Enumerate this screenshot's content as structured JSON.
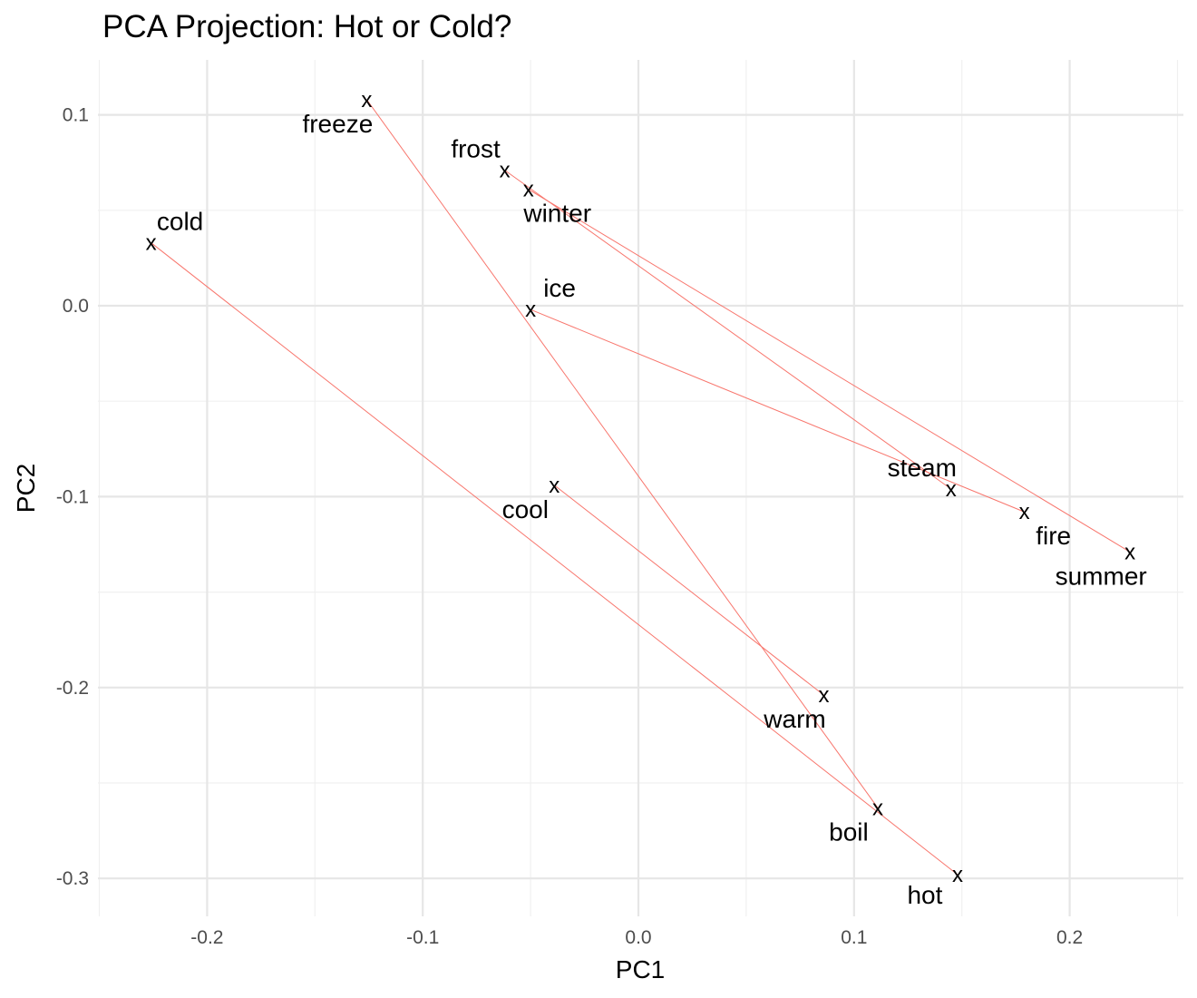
{
  "chart_data": {
    "type": "scatter",
    "title": "PCA Projection: Hot or Cold?",
    "xlabel": "PC1",
    "ylabel": "PC2",
    "xlim": [
      -0.25,
      0.25
    ],
    "ylim": [
      -0.32,
      0.12
    ],
    "x_ticks": [
      -0.2,
      -0.1,
      0.0,
      0.1,
      0.2
    ],
    "x_tick_labels": [
      "-0.2",
      "-0.1",
      "0.0",
      "0.1",
      "0.2"
    ],
    "y_ticks": [
      -0.3,
      -0.2,
      -0.1,
      0.0,
      0.1
    ],
    "y_tick_labels": [
      "-0.3",
      "-0.2",
      "-0.1",
      "0.0",
      "0.1"
    ],
    "grid": true,
    "marker": "x",
    "line_color": "#f8766d",
    "points": [
      {
        "label": "freeze",
        "x": -0.126,
        "y": 0.108
      },
      {
        "label": "frost",
        "x": -0.062,
        "y": 0.071
      },
      {
        "label": "winter",
        "x": -0.051,
        "y": 0.061
      },
      {
        "label": "cold",
        "x": -0.226,
        "y": 0.033
      },
      {
        "label": "ice",
        "x": -0.05,
        "y": -0.002
      },
      {
        "label": "cool",
        "x": -0.039,
        "y": -0.094
      },
      {
        "label": "steam",
        "x": 0.145,
        "y": -0.096
      },
      {
        "label": "fire",
        "x": 0.179,
        "y": -0.108
      },
      {
        "label": "summer",
        "x": 0.228,
        "y": -0.129
      },
      {
        "label": "warm",
        "x": 0.086,
        "y": -0.204
      },
      {
        "label": "boil",
        "x": 0.111,
        "y": -0.263
      },
      {
        "label": "hot",
        "x": 0.148,
        "y": -0.298
      }
    ],
    "pairs": [
      [
        "cold",
        "hot"
      ],
      [
        "cool",
        "warm"
      ],
      [
        "freeze",
        "boil"
      ],
      [
        "ice",
        "fire"
      ],
      [
        "frost",
        "steam"
      ],
      [
        "winter",
        "summer"
      ]
    ]
  }
}
